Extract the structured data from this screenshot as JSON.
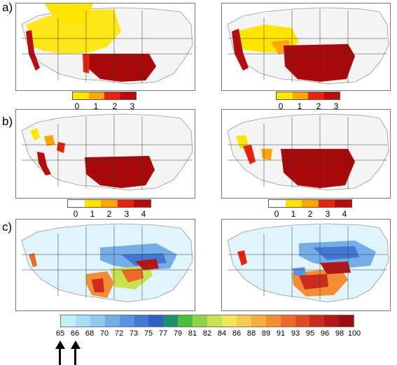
{
  "panels": {
    "a": {
      "label": "a)"
    },
    "b": {
      "label": "b)"
    },
    "c": {
      "label": "c)"
    }
  },
  "legend_a": {
    "ticks": [
      "0",
      "1",
      "2",
      "3"
    ],
    "colors": [
      "#ffe600",
      "#ffa600",
      "#e8230c",
      "#b80d0d"
    ]
  },
  "legend_b": {
    "ticks": [
      "0",
      "1",
      "2",
      "3",
      "4"
    ],
    "colors": [
      "#ffffff",
      "#ffe600",
      "#ffa600",
      "#e8230c",
      "#b80d0d"
    ]
  },
  "legend_c": {
    "ticks": [
      "65",
      "66",
      "68",
      "70",
      "72",
      "73",
      "75",
      "77",
      "79",
      "81",
      "82",
      "84",
      "86",
      "88",
      "89",
      "91",
      "93",
      "95",
      "96",
      "98",
      "100"
    ],
    "colors": [
      "#bff0f5",
      "#a8dcf3",
      "#8fc8f0",
      "#74aee8",
      "#5a93df",
      "#4478d4",
      "#2f60c8",
      "#1f8f6e",
      "#4dbd3d",
      "#8fd447",
      "#c8e24f",
      "#f0e45a",
      "#f6cc4f",
      "#f7ae3f",
      "#f28d33",
      "#eb6a2a",
      "#df4a22",
      "#cc2a1b",
      "#b51616",
      "#9a0f0f"
    ]
  },
  "annotations": {
    "arrows_at": [
      "65",
      "66"
    ]
  }
}
